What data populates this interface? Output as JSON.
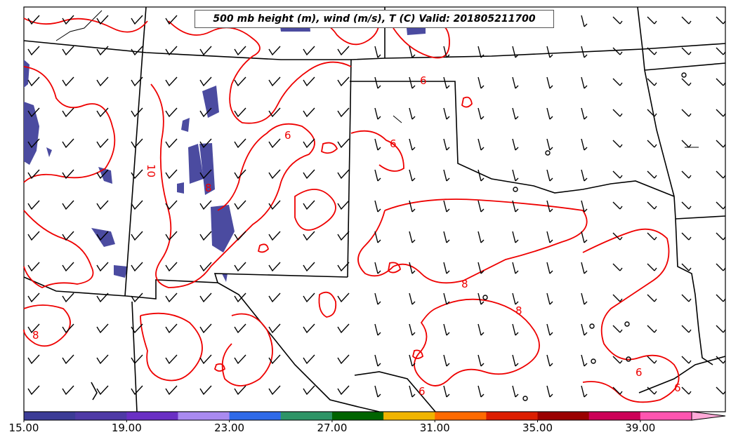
{
  "map": {
    "title": "500 mb height (m), wind (m/s), T (C) Valid: 201805211700",
    "contour_labels": [
      "6",
      "6",
      "6",
      "6",
      "10",
      "8",
      "8",
      "8",
      "8",
      "6",
      "6",
      "6"
    ],
    "contour_color": "#ee0000",
    "fill_color": "#4b4ba0"
  },
  "colorbar": {
    "tick_labels": [
      "15.00",
      "19.00",
      "23.00",
      "27.00",
      "31.00",
      "35.00",
      "39.00"
    ],
    "colors": [
      "#3c3c96",
      "#4f3aa6",
      "#6a2fc4",
      "#a98af0",
      "#2f6ae8",
      "#2e9466",
      "#006400",
      "#f0b400",
      "#ff6a00",
      "#dc1e00",
      "#9a0000",
      "#cc0057",
      "#ff55b0",
      "#ffaad8"
    ]
  }
}
